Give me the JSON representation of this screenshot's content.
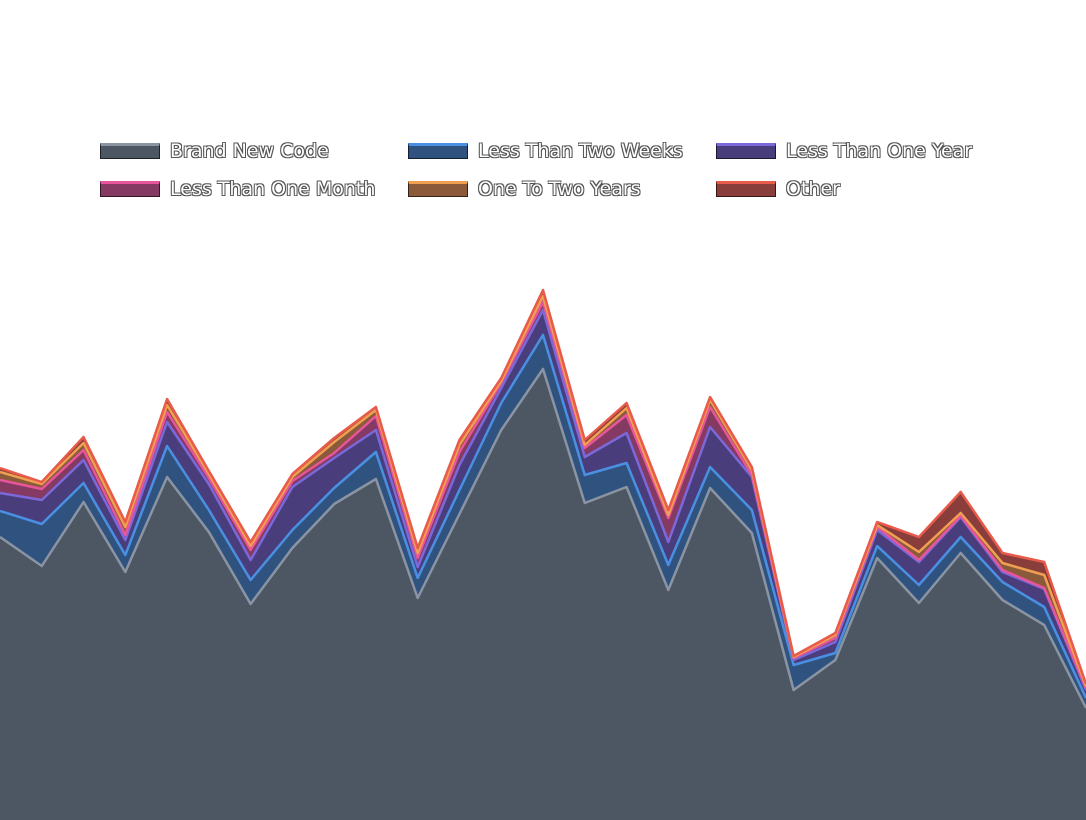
{
  "chart_data": {
    "type": "area",
    "stacked": true,
    "title": "",
    "xlabel": "",
    "ylabel": "",
    "axes_visible": false,
    "grid": false,
    "legend_position": "top",
    "x": [
      1,
      2,
      3,
      4,
      5,
      6,
      7,
      8,
      9,
      10,
      11,
      12,
      13,
      14,
      15,
      16,
      17,
      18,
      19,
      20,
      21,
      22,
      23,
      24,
      25,
      26,
      27
    ],
    "series": [
      {
        "name": "Brand New Code",
        "fill": "#4d5663",
        "line": "#8a94a3",
        "values": [
          283,
          254,
          318,
          248,
          343,
          288,
          216,
          272,
          316,
          341,
          222,
          306,
          390,
          451,
          317,
          333,
          230,
          332,
          287,
          130,
          160,
          262,
          217,
          267,
          220,
          195,
          112
        ]
      },
      {
        "name": "Less Than Two Weeks",
        "fill": "#30527f",
        "line": "#4a90e2",
        "values": [
          26,
          42,
          19,
          17,
          31,
          22,
          24,
          18,
          16,
          27,
          20,
          24,
          27,
          34,
          28,
          24,
          25,
          21,
          23,
          25,
          7,
          12,
          18,
          16,
          18,
          18,
          10
        ]
      },
      {
        "name": "Less Than One Year",
        "fill": "#4a3d7c",
        "line": "#7b68d9",
        "values": [
          18,
          24,
          23,
          15,
          24,
          26,
          20,
          43,
          30,
          22,
          11,
          25,
          15,
          25,
          18,
          30,
          23,
          40,
          33,
          5,
          11,
          16,
          23,
          20,
          10,
          18,
          8
        ]
      },
      {
        "name": "Less Than One Month",
        "fill": "#843a63",
        "line": "#e8559a",
        "values": [
          13,
          11,
          10,
          5,
          10,
          6,
          10,
          6,
          5,
          14,
          9,
          13,
          5,
          8,
          9,
          18,
          24,
          20,
          2,
          2,
          4,
          3,
          2,
          1,
          2,
          1,
          2
        ]
      },
      {
        "name": "One To Two Years",
        "fill": "#8a5a3a",
        "line": "#f0a050",
        "values": [
          8,
          5,
          7,
          8,
          7,
          4,
          4,
          4,
          11,
          6,
          5,
          7,
          2,
          6,
          3,
          7,
          3,
          7,
          5,
          1,
          3,
          2,
          8,
          3,
          7,
          13,
          2
        ]
      },
      {
        "name": "Other",
        "fill": "#8a3e3c",
        "line": "#e85a4a",
        "values": [
          4,
          2,
          6,
          5,
          6,
          3,
          4,
          3,
          4,
          3,
          5,
          5,
          3,
          6,
          5,
          5,
          5,
          3,
          3,
          1,
          2,
          3,
          15,
          21,
          10,
          13,
          2
        ]
      }
    ]
  }
}
